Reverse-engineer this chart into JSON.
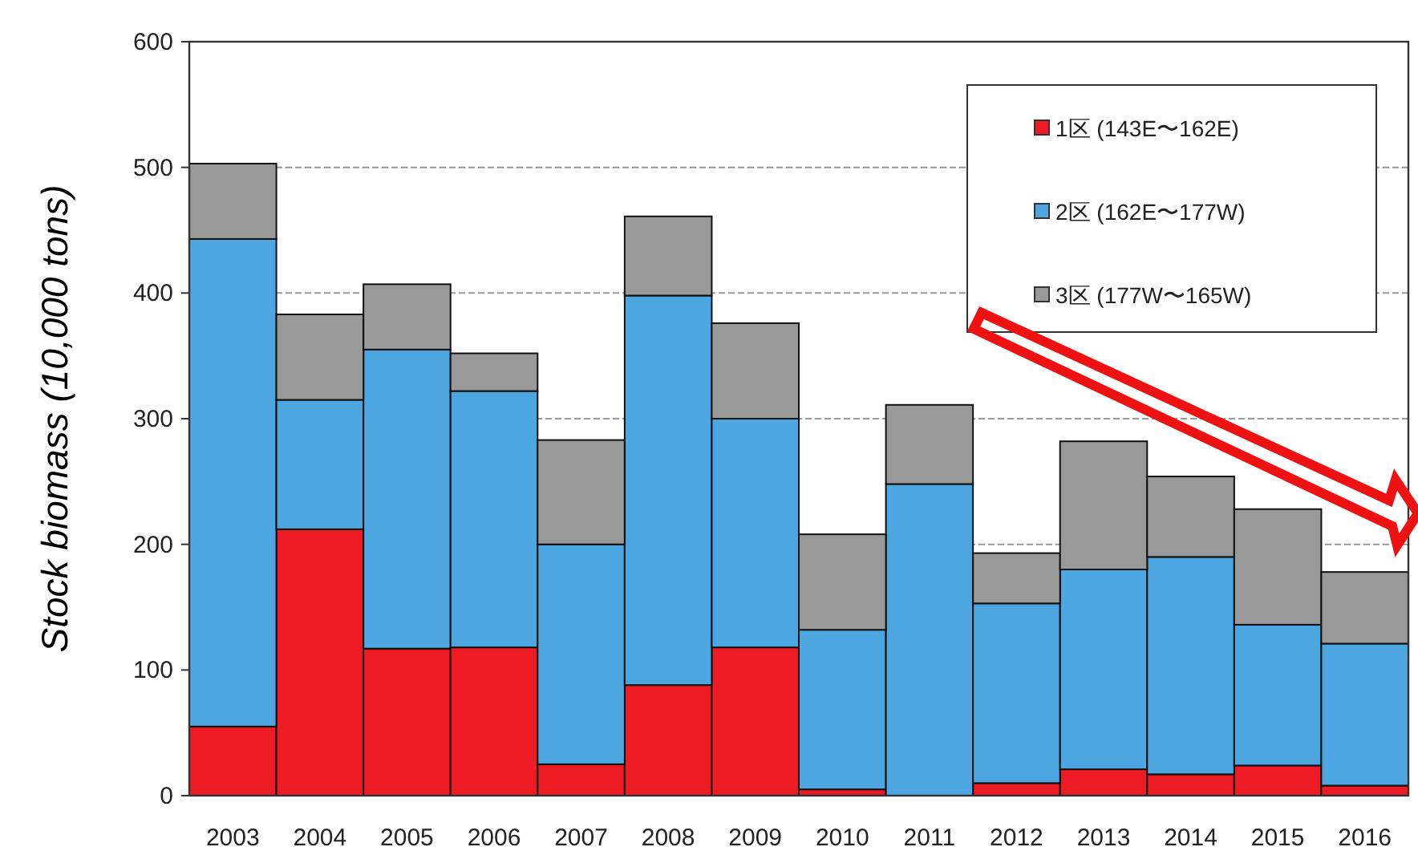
{
  "chart_data": {
    "type": "bar",
    "stacked": true,
    "ylabel": "Stock biomass (10,000 tons)",
    "categories": [
      "2003",
      "2004",
      "2005",
      "2006",
      "2007",
      "2008",
      "2009",
      "2010",
      "2011",
      "2012",
      "2013",
      "2014",
      "2015",
      "2016"
    ],
    "series": [
      {
        "name": "1区 (143E〜162E)",
        "color": "#ed1c24",
        "values": [
          55,
          212,
          117,
          118,
          25,
          88,
          118,
          5,
          0,
          10,
          21,
          17,
          24,
          8
        ]
      },
      {
        "name": "2区 (162E〜177W)",
        "color": "#4da6df",
        "values": [
          388,
          103,
          238,
          204,
          175,
          310,
          182,
          127,
          248,
          143,
          159,
          173,
          112,
          113
        ]
      },
      {
        "name": "3区 (177W〜165W)",
        "color": "#999999",
        "values": [
          60,
          68,
          52,
          30,
          83,
          63,
          76,
          76,
          63,
          40,
          102,
          64,
          92,
          57
        ]
      }
    ],
    "ylim": [
      0,
      600
    ],
    "yticks": [
      0,
      100,
      200,
      300,
      400,
      500,
      600
    ],
    "grid": "y",
    "legend": "top right"
  }
}
